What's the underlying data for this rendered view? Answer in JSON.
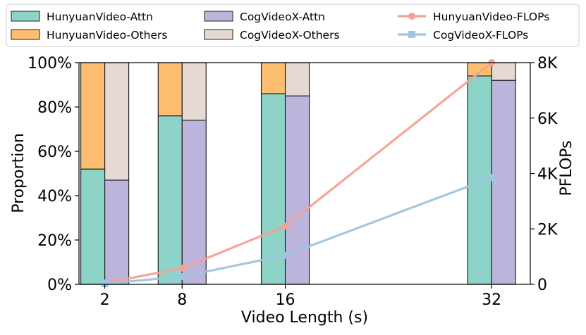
{
  "chart_data": {
    "type": "bar",
    "categories": [
      "2",
      "8",
      "16",
      "32"
    ],
    "x": [
      2,
      8,
      16,
      32
    ],
    "xlabel": "Video Length (s)",
    "ylabel": "Proportion",
    "ylabel_right": "PFLOPs",
    "ylim": [
      0,
      100
    ],
    "ylim_right": [
      0,
      8000
    ],
    "yticks": [
      "0%",
      "20%",
      "40%",
      "60%",
      "80%",
      "100%"
    ],
    "yticks_right": [
      "0",
      "2K",
      "4K",
      "6K",
      "8K"
    ],
    "grid": false,
    "legend_position": "top",
    "bar_series": [
      {
        "name": "HunyuanVideo-Attn",
        "values": [
          52,
          76,
          86,
          94
        ],
        "color": "#8dd3c7"
      },
      {
        "name": "HunyuanVideo-Others",
        "values": [
          48,
          24,
          14,
          6
        ],
        "color": "#fdbf6f"
      },
      {
        "name": "CogVideoX-Attn",
        "values": [
          47,
          74,
          85,
          92
        ],
        "color": "#bcb4db"
      },
      {
        "name": "CogVideoX-Others",
        "values": [
          53,
          26,
          15,
          8
        ],
        "color": "#e6d9d3"
      }
    ],
    "line_series": [
      {
        "name": "HunyuanVideo-FLOPs",
        "values": [
          50,
          580,
          2100,
          8000
        ],
        "color": "#f4a093",
        "marker": "circle"
      },
      {
        "name": "CogVideoX-FLOPs",
        "values": [
          25,
          280,
          1050,
          3850
        ],
        "color": "#9ec5df",
        "marker": "square"
      }
    ]
  }
}
